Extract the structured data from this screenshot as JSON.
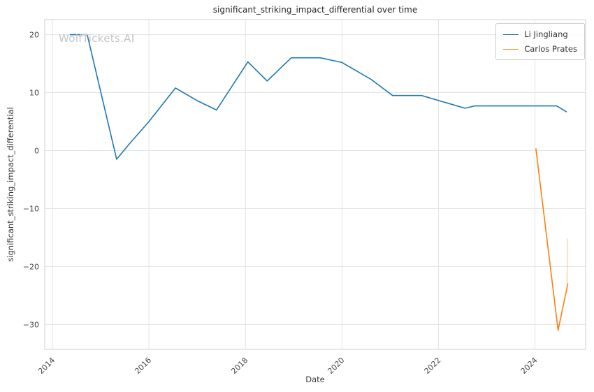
{
  "watermark": "WolfTickets.AI",
  "chart_data": {
    "type": "line",
    "title": "significant_striking_impact_differential over time",
    "xlabel": "Date",
    "ylabel": "significant_striking_impact_differential",
    "grid": true,
    "legend_position": "upper right",
    "x_ticks": [
      2014,
      2016,
      2018,
      2020,
      2022,
      2024
    ],
    "y_ticks": [
      -30,
      -20,
      -10,
      0,
      10,
      20
    ],
    "xlim": [
      2013.84,
      2025.05
    ],
    "ylim": [
      -34.3,
      22.6
    ],
    "series": [
      {
        "name": "Li Jingliang",
        "color": "#1f77b4",
        "points": [
          [
            2014.37,
            20
          ],
          [
            2014.72,
            20
          ],
          [
            2015.33,
            -1.5
          ],
          [
            2015.6,
            1.2
          ],
          [
            2016.0,
            5.0
          ],
          [
            2016.55,
            10.8
          ],
          [
            2017.0,
            8.6
          ],
          [
            2017.4,
            7.0
          ],
          [
            2018.05,
            15.3
          ],
          [
            2018.45,
            12.0
          ],
          [
            2018.95,
            16.0
          ],
          [
            2019.55,
            16.0
          ],
          [
            2020.0,
            15.2
          ],
          [
            2020.6,
            12.3
          ],
          [
            2021.05,
            9.5
          ],
          [
            2021.65,
            9.5
          ],
          [
            2022.55,
            7.3
          ],
          [
            2022.75,
            7.7
          ],
          [
            2024.45,
            7.7
          ],
          [
            2024.65,
            6.7
          ]
        ]
      },
      {
        "name": "Carlos Prates",
        "color": "#ff7f0e",
        "points": [
          [
            2024.02,
            0.3
          ],
          [
            2024.48,
            -31.0
          ],
          [
            2024.68,
            -23.0
          ]
        ]
      }
    ],
    "faint_segment": {
      "x": 2024.67,
      "y1": -15.2,
      "y2": -23.0,
      "color": "#ff7f0e",
      "opacity": 0.3
    },
    "colors": {
      "grid": "#e3e3e3",
      "spine": "#cfcfcf",
      "tick_label": "#444444"
    }
  }
}
